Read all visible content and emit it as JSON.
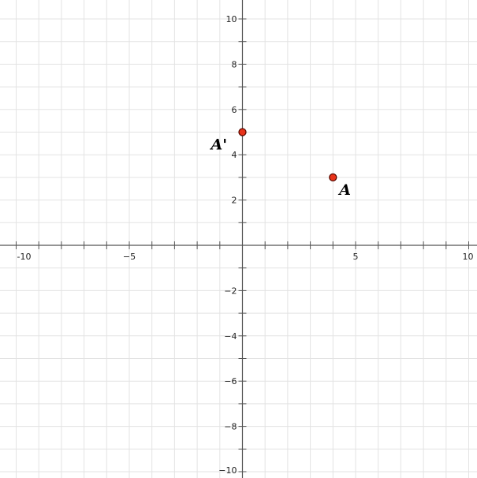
{
  "chart_data": {
    "type": "scatter",
    "xlim": [
      -10,
      10
    ],
    "ylim": [
      -10,
      10
    ],
    "grid": true,
    "grid_step": 1,
    "x_ticks": [
      -10,
      -5,
      5,
      10
    ],
    "x_tick_labels": [
      "-10",
      "−5",
      "5",
      "10"
    ],
    "y_ticks": [
      10,
      8,
      6,
      4,
      2,
      -2,
      -4,
      -6,
      -8,
      -10
    ],
    "y_tick_labels": [
      "10",
      "8",
      "6",
      "4",
      "2",
      "−2",
      "−4",
      "−6",
      "−8",
      "−10"
    ],
    "points": [
      {
        "label": "A",
        "x": 4,
        "y": 3
      },
      {
        "label": "A'",
        "x": 0,
        "y": 5
      }
    ],
    "point_color": "#e8331a",
    "point_outline": "#5a0a00",
    "grid_color": "#e3e3e3",
    "axis_color": "#555555"
  }
}
